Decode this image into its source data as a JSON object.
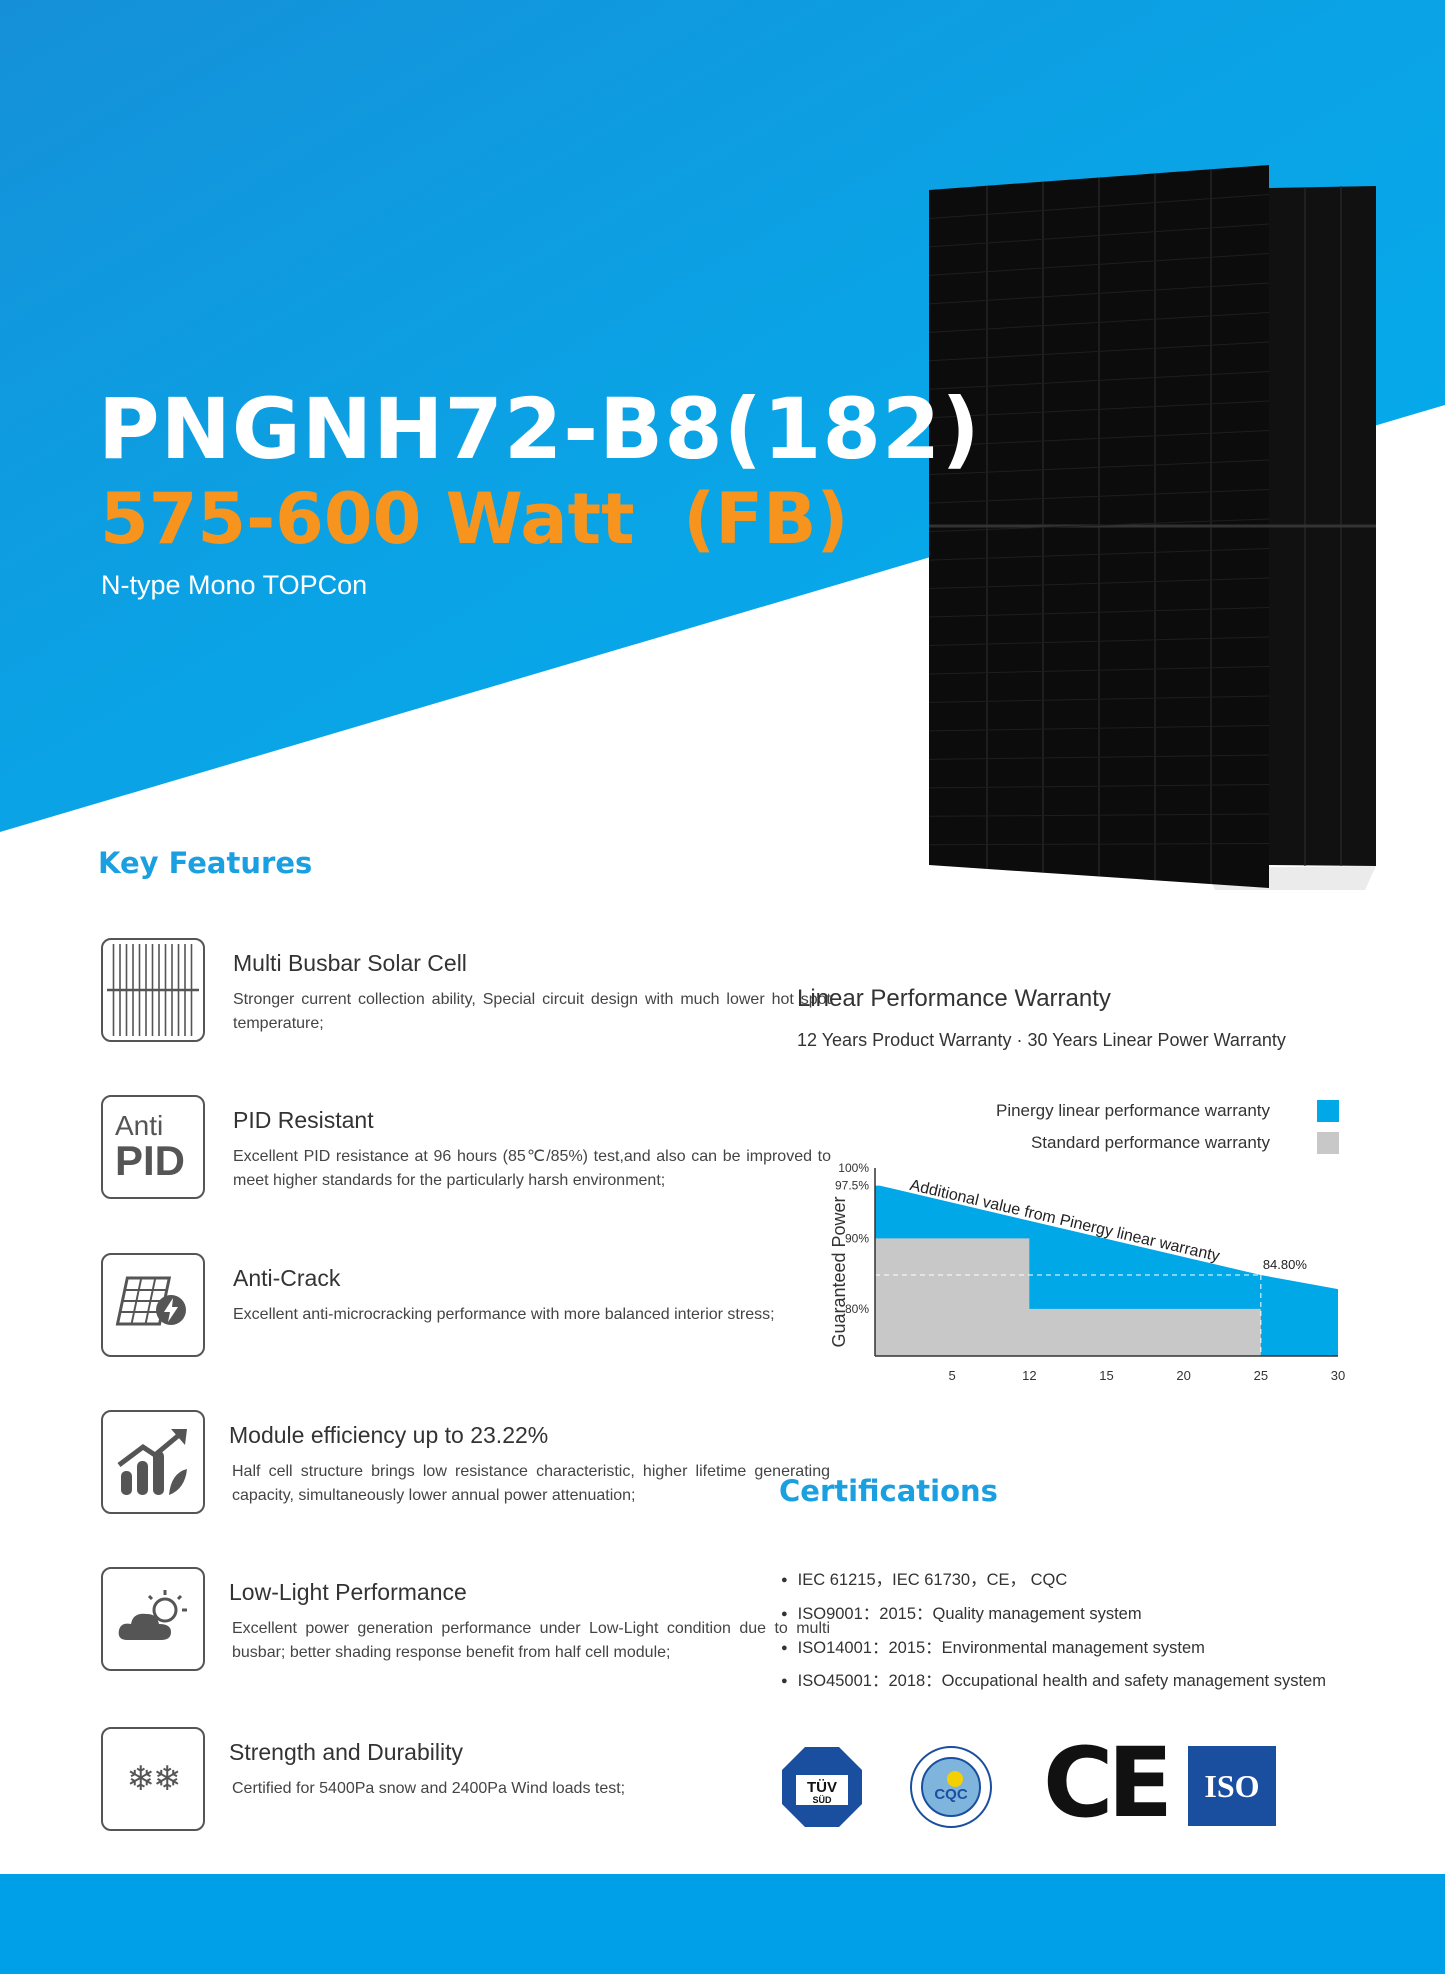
{
  "header": {
    "title": "PNGNH72-B8(182)",
    "power_range": "575-600 Watt  (FB)",
    "subtitle": "N-type Mono TOPCon"
  },
  "colors": {
    "brand_blue": "#00a0e9",
    "accent_orange": "#f7941d",
    "standard_grey": "#c8c8c8"
  },
  "key_features": {
    "heading": "Key Features",
    "items": [
      {
        "icon": "multi-busbar-cell-icon",
        "title": "Multi Busbar Solar Cell",
        "text": "Stronger current collection ability, Special circuit design with much lower hot spot temperature;"
      },
      {
        "icon": "anti-pid-icon",
        "icon_text_1": "Anti",
        "icon_text_2": "PID",
        "title": "PID Resistant",
        "text": "Excellent PID resistance at 96 hours (85℃/85%) test,and also can be improved to meet higher standards for the particularly harsh environment;"
      },
      {
        "icon": "anti-crack-icon",
        "title": "Anti-Crack",
        "text": "Excellent anti-microcracking performance with more balanced interior stress;"
      },
      {
        "icon": "efficiency-chart-icon",
        "title": "Module efficiency up to 23.22%",
        "text": "Half cell structure brings low resistance characteristic, higher lifetime generating capacity, simultaneously lower annual power attenuation;"
      },
      {
        "icon": "low-light-cloud-sun-icon",
        "title": "Low-Light Performance",
        "text": "Excellent power generation performance under Low-Light condition due to multi busbar; better shading response benefit from half cell module;"
      },
      {
        "icon": "snowflake-wind-icon",
        "title": "Strength and Durability",
        "text": "Certified for 5400Pa snow and 2400Pa Wind loads test;"
      }
    ]
  },
  "warranty": {
    "title": "Linear Performance Warranty",
    "subtitle": "12 Years Product Warranty · 30 Years Linear Power Warranty"
  },
  "chart_data": {
    "type": "area",
    "ylabel": "Guaranteed Power",
    "xlabel": "",
    "x_ticks": [
      5,
      12,
      15,
      20,
      25,
      30
    ],
    "y_ticks": [
      "100%",
      "97.5%",
      "90%",
      "80%"
    ],
    "y_tick_values": [
      100,
      97.5,
      90,
      80
    ],
    "ylim": [
      73.3,
      100
    ],
    "xlim": [
      0,
      30
    ],
    "legend": "top-right",
    "series": [
      {
        "name": "Pinergy linear performance warranty",
        "color": "#00a8e8",
        "points": [
          [
            0,
            97.5
          ],
          [
            0.3,
            97.5
          ],
          [
            25,
            84.8
          ],
          [
            30,
            82.8
          ]
        ]
      },
      {
        "name": "Standard performance warranty",
        "color": "#c8c8c8",
        "points": [
          [
            0,
            90
          ],
          [
            12,
            90
          ],
          [
            12,
            80
          ],
          [
            25,
            80
          ],
          [
            25,
            73.3
          ]
        ]
      }
    ],
    "annotations": {
      "slope_label": "Additional value from Pinergy linear warranty",
      "value_label": "84.80%"
    }
  },
  "certifications": {
    "heading": "Certifications",
    "items": [
      "IEC 61215，IEC 61730，CE， CQC",
      "ISO9001：2015：Quality management system",
      "ISO14001：2015：Environmental management system",
      "ISO45001：2018：Occupational health and safety management system"
    ],
    "logos": {
      "tuv": "TÜV SÜD",
      "cqc": "CQC",
      "ce": "CE",
      "iso": "ISO"
    }
  }
}
